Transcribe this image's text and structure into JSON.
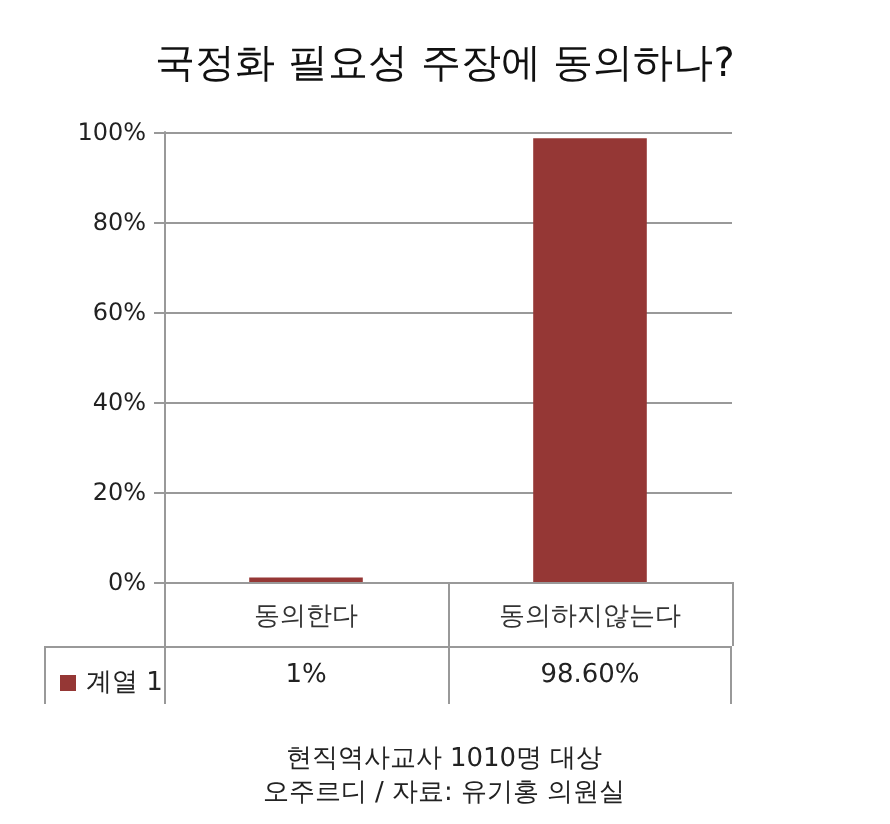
{
  "chart_data": {
    "type": "bar",
    "title": "국정화 필요성 주장에 동의하나?",
    "categories": [
      "동의한다",
      "동의하지않는다"
    ],
    "series": [
      {
        "name": "계열 1",
        "color": "#953735",
        "values": [
          1,
          98.6
        ],
        "value_labels": [
          "1%",
          "98.60%"
        ]
      }
    ],
    "ylim": [
      0,
      100
    ],
    "yticks": [
      {
        "value": 0,
        "label": "0%"
      },
      {
        "value": 20,
        "label": "20%"
      },
      {
        "value": 40,
        "label": "40%"
      },
      {
        "value": 60,
        "label": "60%"
      },
      {
        "value": 80,
        "label": "80%"
      },
      {
        "value": 100,
        "label": "100%"
      }
    ],
    "grid": "y",
    "legend": "bottom left",
    "annotations": [
      "현직역사교사 1010명 대상",
      "오주르디 / 자료: 유기홍 의원실"
    ]
  }
}
